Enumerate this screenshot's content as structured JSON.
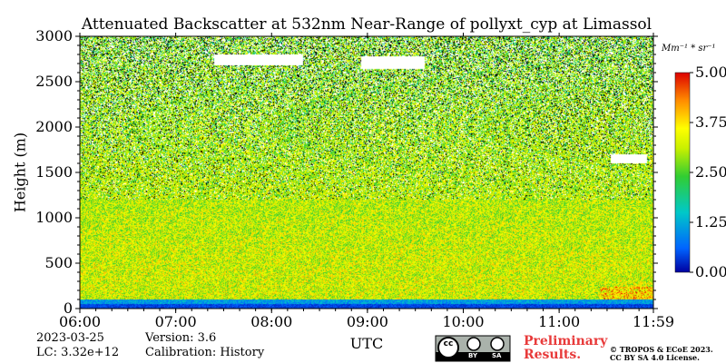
{
  "chart_data": {
    "type": "heatmap",
    "title": "Attenuated Backscatter at 532nm Near-Range of pollyxt_cyp at Limassol",
    "xlabel": "UTC",
    "ylabel": "Height (m)",
    "x_ticks": [
      "06:00",
      "07:00",
      "08:00",
      "09:00",
      "10:00",
      "11:00",
      "11:59"
    ],
    "x_range": [
      "06:00",
      "11:59"
    ],
    "y_ticks": [
      0,
      500,
      1000,
      1500,
      2000,
      2500,
      3000
    ],
    "ylim": [
      0,
      3000
    ],
    "colorbar": {
      "unit": "Mm⁻¹ * sr⁻¹",
      "ticks": [
        "0.00",
        "1.25",
        "2.50",
        "3.75",
        "5.00"
      ],
      "range": [
        0,
        5
      ],
      "colors": [
        "#0000a0",
        "#0064ff",
        "#00c8c8",
        "#32cd32",
        "#ffff00",
        "#ff8c00",
        "#dd0000"
      ]
    },
    "grid": false
  },
  "info": {
    "date": "2023-03-25",
    "lc": "LC: 3.32e+12",
    "version": "Version: 3.6",
    "calibration": "Calibration: History"
  },
  "notice": {
    "preliminary_line1": "Preliminary",
    "preliminary_line2": "Results.",
    "copyright_line1": "© TROPOS & ECoE 2023.",
    "copyright_line2": "CC BY SA 4.0 License.",
    "license_badge": [
      "cc",
      "BY",
      "SA"
    ]
  }
}
